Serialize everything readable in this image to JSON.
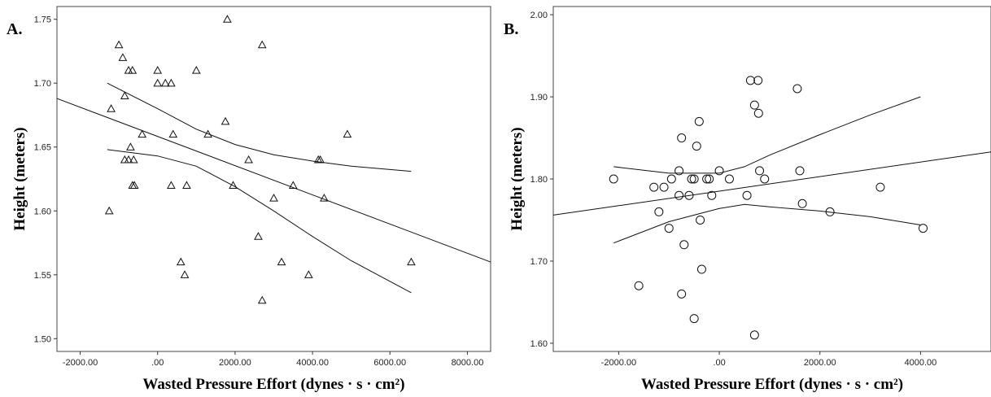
{
  "chart_data": [
    {
      "type": "scatter",
      "panel_label": "A.",
      "xlabel": "Wasted Pressure Effort (dynes · s · cm²)",
      "ylabel": "Height (meters)",
      "xlim": [
        -2600,
        8600
      ],
      "ylim": [
        1.49,
        1.76
      ],
      "x_ticks": [
        -2000,
        0,
        2000,
        4000,
        6000,
        8000
      ],
      "x_tick_labels": [
        "-2000.00",
        ".00",
        "2000.00",
        "4000.00",
        "6000.00",
        "8000.00"
      ],
      "y_ticks": [
        1.5,
        1.55,
        1.6,
        1.65,
        1.7,
        1.75
      ],
      "y_tick_labels": [
        "1.50",
        "1.55",
        "1.60",
        "1.65",
        "1.70",
        "1.75"
      ],
      "marker": "triangle",
      "points": [
        [
          -1000,
          1.73
        ],
        [
          -900,
          1.72
        ],
        [
          -750,
          1.71
        ],
        [
          -650,
          1.71
        ],
        [
          -1200,
          1.68
        ],
        [
          -850,
          1.69
        ],
        [
          -700,
          1.65
        ],
        [
          -850,
          1.64
        ],
        [
          -750,
          1.64
        ],
        [
          -620,
          1.64
        ],
        [
          -650,
          1.62
        ],
        [
          -600,
          1.62
        ],
        [
          -1250,
          1.6
        ],
        [
          -400,
          1.66
        ],
        [
          0,
          1.71
        ],
        [
          0,
          1.7
        ],
        [
          200,
          1.7
        ],
        [
          350,
          1.7
        ],
        [
          1000,
          1.71
        ],
        [
          400,
          1.66
        ],
        [
          1300,
          1.66
        ],
        [
          1800,
          1.75
        ],
        [
          1750,
          1.67
        ],
        [
          2700,
          1.73
        ],
        [
          350,
          1.62
        ],
        [
          750,
          1.62
        ],
        [
          1950,
          1.62
        ],
        [
          2350,
          1.64
        ],
        [
          600,
          1.56
        ],
        [
          700,
          1.55
        ],
        [
          2600,
          1.58
        ],
        [
          3000,
          1.61
        ],
        [
          3200,
          1.56
        ],
        [
          2700,
          1.53
        ],
        [
          3500,
          1.62
        ],
        [
          3900,
          1.55
        ],
        [
          4150,
          1.64
        ],
        [
          4200,
          1.64
        ],
        [
          4300,
          1.61
        ],
        [
          4900,
          1.66
        ],
        [
          6550,
          1.56
        ]
      ],
      "fit": {
        "x": [
          -2600,
          8600
        ],
        "y": [
          1.688,
          1.56
        ]
      },
      "ci_upper": {
        "x": [
          -1300,
          0,
          1000,
          2000,
          3000,
          4000,
          5000,
          6550
        ],
        "y": [
          1.7,
          1.68,
          1.664,
          1.652,
          1.644,
          1.639,
          1.635,
          1.631
        ]
      },
      "ci_lower": {
        "x": [
          -1300,
          0,
          1000,
          2000,
          3000,
          4000,
          5000,
          6550
        ],
        "y": [
          1.648,
          1.643,
          1.635,
          1.619,
          1.6,
          1.58,
          1.561,
          1.536
        ]
      }
    },
    {
      "type": "scatter",
      "panel_label": "B.",
      "xlabel": "Wasted Pressure Effort (dynes · s · cm²)",
      "ylabel": "Height (meters)",
      "xlim": [
        -3300,
        5400
      ],
      "ylim": [
        1.59,
        2.01
      ],
      "x_ticks": [
        -2000,
        0,
        2000,
        4000
      ],
      "x_tick_labels": [
        "-2000.00",
        ".00",
        "2000.00",
        "4000.00"
      ],
      "y_ticks": [
        1.6,
        1.7,
        1.8,
        1.9,
        2.0
      ],
      "y_tick_labels": [
        "1.60",
        "1.70",
        "1.80",
        "1.90",
        "2.00"
      ],
      "marker": "circle",
      "points": [
        [
          -2100,
          1.8
        ],
        [
          -1600,
          1.67
        ],
        [
          -1300,
          1.79
        ],
        [
          -1200,
          1.76
        ],
        [
          -1100,
          1.79
        ],
        [
          -1000,
          1.74
        ],
        [
          -950,
          1.8
        ],
        [
          -800,
          1.81
        ],
        [
          -800,
          1.78
        ],
        [
          -750,
          1.85
        ],
        [
          -750,
          1.66
        ],
        [
          -700,
          1.72
        ],
        [
          -600,
          1.78
        ],
        [
          -550,
          1.8
        ],
        [
          -500,
          1.8
        ],
        [
          -500,
          1.63
        ],
        [
          -450,
          1.84
        ],
        [
          -400,
          1.87
        ],
        [
          -380,
          1.75
        ],
        [
          -350,
          1.69
        ],
        [
          -250,
          1.8
        ],
        [
          -200,
          1.8
        ],
        [
          -150,
          1.78
        ],
        [
          0,
          1.81
        ],
        [
          200,
          1.8
        ],
        [
          550,
          1.78
        ],
        [
          620,
          1.92
        ],
        [
          700,
          1.89
        ],
        [
          700,
          1.61
        ],
        [
          770,
          1.92
        ],
        [
          780,
          1.88
        ],
        [
          800,
          1.81
        ],
        [
          900,
          1.8
        ],
        [
          1550,
          1.91
        ],
        [
          1600,
          1.81
        ],
        [
          1650,
          1.77
        ],
        [
          2200,
          1.76
        ],
        [
          3200,
          1.79
        ],
        [
          4050,
          1.74
        ]
      ],
      "fit": {
        "x": [
          -3300,
          5400
        ],
        "y": [
          1.756,
          1.833
        ]
      },
      "ci_upper": {
        "x": [
          -2100,
          -1000,
          0,
          500,
          1000,
          2000,
          3000,
          4000
        ],
        "y": [
          1.815,
          1.807,
          1.807,
          1.815,
          1.829,
          1.854,
          1.878,
          1.9
        ]
      },
      "ci_lower": {
        "x": [
          -2100,
          -1000,
          0,
          500,
          1000,
          2000,
          3000,
          4000
        ],
        "y": [
          1.722,
          1.748,
          1.764,
          1.769,
          1.766,
          1.761,
          1.754,
          1.744
        ]
      }
    }
  ]
}
